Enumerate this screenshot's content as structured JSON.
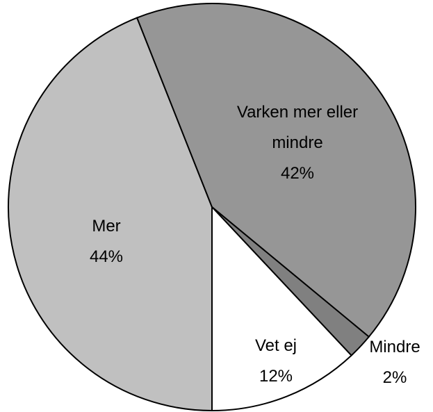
{
  "chart_data": {
    "type": "pie",
    "categories": [
      "Mer",
      "Varken mer eller mindre",
      "Mindre",
      "Vet ej"
    ],
    "values": [
      44,
      42,
      2,
      12
    ],
    "value_labels": [
      "44%",
      "42%",
      "2%",
      "12%"
    ],
    "colors": [
      "#c0c0c0",
      "#969696",
      "#808080",
      "#ffffff"
    ]
  }
}
